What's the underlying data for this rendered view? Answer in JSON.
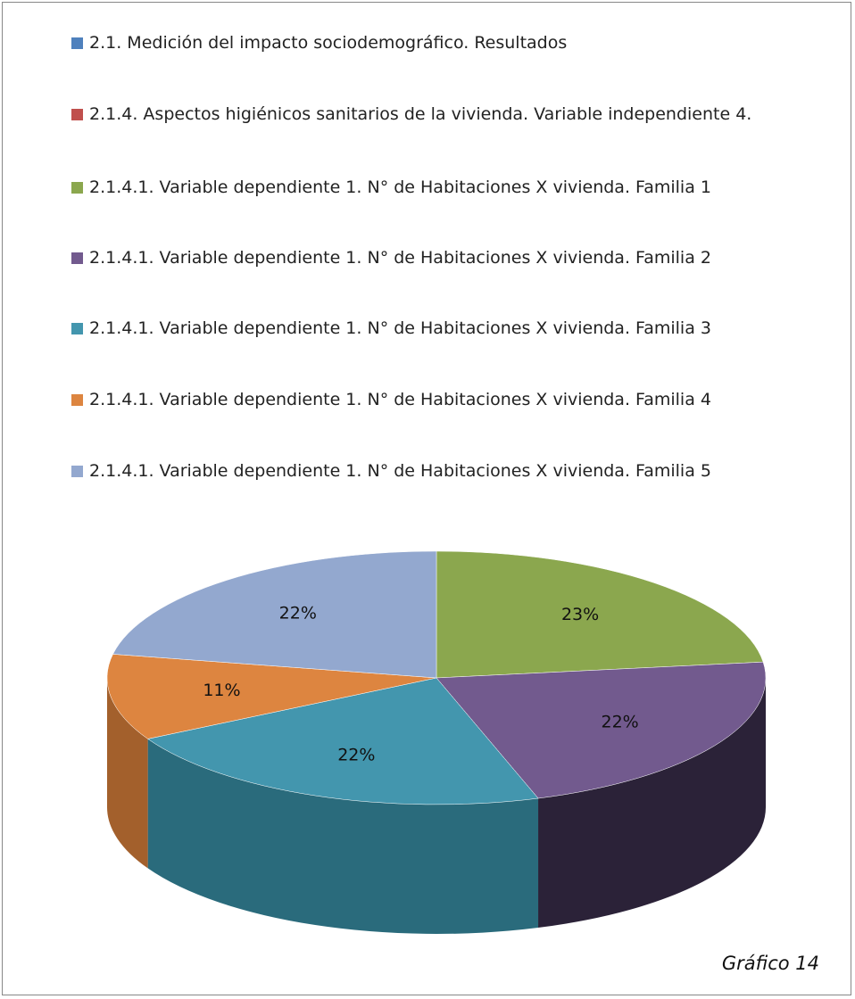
{
  "chart_data": {
    "type": "pie",
    "caption": "Gráfico 14",
    "categories": [
      "2.1. Medición del impacto  sociodemográfico. Resultados",
      "2.1.4. Aspectos higiénicos sanitarios de la vivienda. Variable independiente 4.",
      "2.1.4.1. Variable dependiente 1. N° de Habitaciones X vivienda. Familia 1",
      "2.1.4.1. Variable dependiente 1. N° de Habitaciones X vivienda. Familia 2",
      "2.1.4.1. Variable dependiente 1. N° de Habitaciones X vivienda. Familia 3",
      "2.1.4.1. Variable dependiente 1. N° de Habitaciones X vivienda. Familia 4",
      "2.1.4.1. Variable dependiente 1. N° de Habitaciones X vivienda. Familia 5"
    ],
    "values": [
      0,
      0,
      23,
      22,
      22,
      11,
      22
    ],
    "value_labels": [
      null,
      null,
      "23%",
      "22%",
      "22%",
      "11%",
      "22%"
    ],
    "colors": [
      "#4f81bd",
      "#c0504d",
      "#8ba74e",
      "#725a8e",
      "#4396ae",
      "#dd8540",
      "#93a8cf"
    ],
    "side_colors": [
      "#2f4f7a",
      "#7a302e",
      "#4f6a2a",
      "#2b2238",
      "#2a6b7c",
      "#a3602c",
      "#6d80a8"
    ]
  }
}
